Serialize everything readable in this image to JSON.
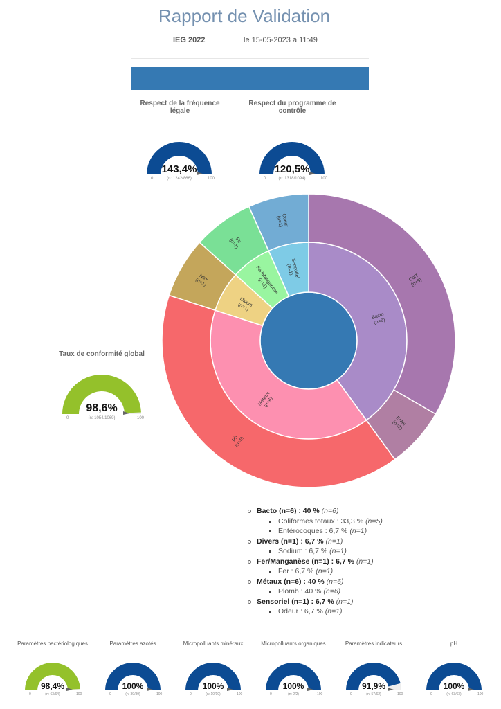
{
  "header": {
    "title": "Rapport de Validation",
    "organization": "IEG 2022",
    "date": "le 15-05-2023 à 11:49"
  },
  "colors": {
    "accent": "#3579b3",
    "gauge_blue": "#0c4b93",
    "gauge_green": "#94c12b",
    "gauge_empty": "#eeeeee"
  },
  "gauges": [
    {
      "title": "Respect de la fréquence légale",
      "value_text": "143,4%",
      "value": 143.4,
      "n": "(n: 1242/866)",
      "min": "0",
      "max": "100",
      "color": "#0c4b93"
    },
    {
      "title": "Respect du programme de contrôle",
      "value_text": "120,5%",
      "value": 120.5,
      "n": "(n: 1318/1094)",
      "min": "0",
      "max": "100",
      "color": "#0c4b93"
    },
    {
      "title": "Taux de conformité global",
      "value_text": "98,6%",
      "value": 98.6,
      "n": "(n: 1054/1069)",
      "min": "0",
      "max": "100",
      "color": "#94c12b"
    },
    {
      "title": "Paramètres bactériologiques",
      "value_text": "98,4%",
      "value": 98.4,
      "n": "(n: 63/64)",
      "min": "0",
      "max": "100",
      "color": "#94c12b"
    },
    {
      "title": "Paramètres azotés",
      "value_text": "100%",
      "value": 100,
      "n": "(n: 39/39)",
      "min": "0",
      "max": "100",
      "color": "#0c4b93"
    },
    {
      "title": "Micropolluants minéraux",
      "value_text": "100%",
      "value": 100,
      "n": "(n: 10/10)",
      "min": "0",
      "max": "100",
      "color": "#0c4b93"
    },
    {
      "title": "Micropolluants organiques",
      "value_text": "100%",
      "value": 100,
      "n": "(n: 2/2)",
      "min": "0",
      "max": "100",
      "color": "#0c4b93"
    },
    {
      "title": "Paramètres indicateurs",
      "value_text": "91,9%",
      "value": 91.9,
      "n": "(n: 57/62)",
      "min": "0",
      "max": "100",
      "color": "#0c4b93"
    },
    {
      "title": "pH",
      "value_text": "100%",
      "value": 100,
      "n": "(n: 63/63)",
      "min": "0",
      "max": "100",
      "color": "#0c4b93"
    }
  ],
  "chart_data": {
    "type": "sunburst",
    "center_color": "#3579b3",
    "groups": [
      {
        "label": "Bacto",
        "n": "(n=6)",
        "value": 6,
        "color": "#a98bc8",
        "children": [
          {
            "label": "ColT",
            "n": "(n=5)",
            "value": 5,
            "color": "#a777ae"
          },
          {
            "label": "Enter",
            "n": "(n=1)",
            "value": 1,
            "color": "#b07fa3"
          }
        ]
      },
      {
        "label": "Métaux",
        "n": "(n=6)",
        "value": 6,
        "color": "#fd90b0",
        "children": [
          {
            "label": "Pb",
            "n": "(n=6)",
            "value": 6,
            "color": "#f6686b"
          }
        ]
      },
      {
        "label": "Divers",
        "n": "(n=1)",
        "value": 1,
        "color": "#eed283",
        "children": [
          {
            "label": "Na+",
            "n": "(n=1)",
            "value": 1,
            "color": "#c4a65b"
          }
        ]
      },
      {
        "label": "Fer/Manganèse",
        "n": "(n=1)",
        "value": 1,
        "color": "#99f5a0",
        "children": [
          {
            "label": "Fe",
            "n": "(n=1)",
            "value": 1,
            "color": "#7ae096"
          }
        ]
      },
      {
        "label": "Sensoriel",
        "n": "(n=1)",
        "value": 1,
        "color": "#7ecbe6",
        "children": [
          {
            "label": "Odeur",
            "n": "(n=1)",
            "value": 1,
            "color": "#72acd4"
          }
        ]
      }
    ]
  },
  "legend": [
    {
      "name": "Bacto (n=6) : 40 %",
      "n": "(n=6)",
      "items": [
        {
          "name": "Coliformes totaux : 33,3 %",
          "n": "(n=5)"
        },
        {
          "name": "Entérocoques : 6,7 %",
          "n": "(n=1)"
        }
      ]
    },
    {
      "name": "Divers (n=1) : 6,7 %",
      "n": "(n=1)",
      "items": [
        {
          "name": "Sodium : 6,7 %",
          "n": "(n=1)"
        }
      ]
    },
    {
      "name": "Fer/Manganèse (n=1) : 6,7 %",
      "n": "(n=1)",
      "items": [
        {
          "name": "Fer : 6,7 %",
          "n": "(n=1)"
        }
      ]
    },
    {
      "name": "Métaux (n=6) : 40 %",
      "n": "(n=6)",
      "items": [
        {
          "name": "Plomb : 40 %",
          "n": "(n=6)"
        }
      ]
    },
    {
      "name": "Sensoriel (n=1) : 6,7 %",
      "n": "(n=1)",
      "items": [
        {
          "name": "Odeur : 6,7 %",
          "n": "(n=1)"
        }
      ]
    }
  ]
}
